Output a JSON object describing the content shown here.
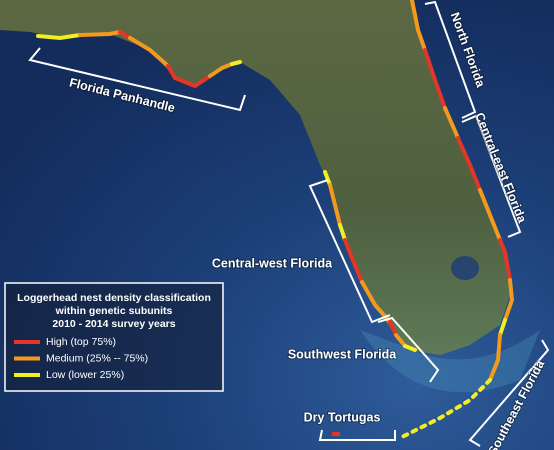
{
  "map": {
    "regions": [
      {
        "label": "Florida Panhandle"
      },
      {
        "label": "North Florida"
      },
      {
        "label": "Central-east Florida"
      },
      {
        "label": "Central-west Florida"
      },
      {
        "label": "Southwest Florida"
      },
      {
        "label": "Dry Tortugas"
      },
      {
        "label": "Southeast Florida"
      }
    ],
    "legend": {
      "title": [
        "Loggerhead nest density classification",
        "within genetic subunits",
        "2010 - 2014 survey years"
      ],
      "items": [
        {
          "label": "High (top 75%)",
          "color": "#e53526"
        },
        {
          "label": "Medium (25% -- 75%)",
          "color": "#f39a1c"
        },
        {
          "label": "Low (lower 25%)",
          "color": "#f2ee25"
        }
      ]
    }
  }
}
